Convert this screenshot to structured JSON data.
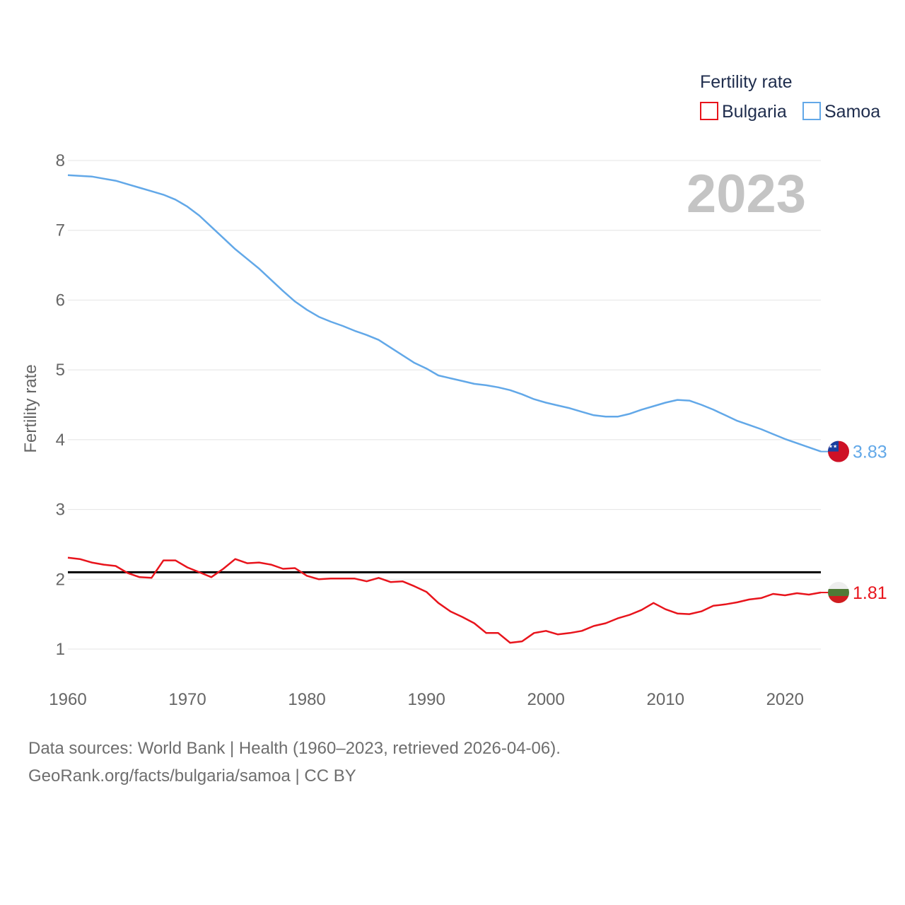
{
  "legend": {
    "title": "Fertility rate",
    "items": [
      {
        "name": "Bulgaria",
        "color": "#e8141c"
      },
      {
        "name": "Samoa",
        "color": "#62a8e8"
      }
    ]
  },
  "year_label": "2023",
  "end_labels": {
    "samoa": "3.83",
    "bulgaria": "1.81"
  },
  "footer": {
    "line1": "Data sources: World Bank | Health (1960–2023, retrieved 2026-04-06).",
    "line2": "GeoRank.org/facts/bulgaria/samoa | CC BY"
  },
  "chart_data": {
    "type": "line",
    "title": "Fertility rate",
    "xlabel": "",
    "ylabel": "Fertility rate",
    "xlim": [
      1960,
      2023
    ],
    "ylim": [
      0.5,
      8.3
    ],
    "x_ticks": [
      "1960",
      "1970",
      "1980",
      "1990",
      "2000",
      "2010",
      "2020"
    ],
    "y_ticks": [
      "1",
      "2",
      "3",
      "4",
      "5",
      "6",
      "7",
      "8"
    ],
    "reference_line": 2.1,
    "x": [
      1960,
      1961,
      1962,
      1963,
      1964,
      1965,
      1966,
      1967,
      1968,
      1969,
      1970,
      1971,
      1972,
      1973,
      1974,
      1975,
      1976,
      1977,
      1978,
      1979,
      1980,
      1981,
      1982,
      1983,
      1984,
      1985,
      1986,
      1987,
      1988,
      1989,
      1990,
      1991,
      1992,
      1993,
      1994,
      1995,
      1996,
      1997,
      1998,
      1999,
      2000,
      2001,
      2002,
      2003,
      2004,
      2005,
      2006,
      2007,
      2008,
      2009,
      2010,
      2011,
      2012,
      2013,
      2014,
      2015,
      2016,
      2017,
      2018,
      2019,
      2020,
      2021,
      2022,
      2023
    ],
    "series": [
      {
        "name": "Bulgaria",
        "color": "#e8141c",
        "values": [
          2.31,
          2.29,
          2.24,
          2.21,
          2.19,
          2.09,
          2.03,
          2.02,
          2.27,
          2.27,
          2.17,
          2.1,
          2.03,
          2.15,
          2.29,
          2.23,
          2.24,
          2.21,
          2.15,
          2.16,
          2.05,
          2.0,
          2.01,
          2.01,
          2.01,
          1.97,
          2.02,
          1.96,
          1.97,
          1.9,
          1.82,
          1.66,
          1.54,
          1.46,
          1.37,
          1.23,
          1.23,
          1.09,
          1.11,
          1.23,
          1.26,
          1.21,
          1.23,
          1.26,
          1.33,
          1.37,
          1.44,
          1.49,
          1.56,
          1.66,
          1.57,
          1.51,
          1.5,
          1.54,
          1.62,
          1.64,
          1.67,
          1.71,
          1.73,
          1.79,
          1.77,
          1.8,
          1.78,
          1.81
        ]
      },
      {
        "name": "Samoa",
        "color": "#62a8e8",
        "values": [
          7.79,
          7.78,
          7.77,
          7.74,
          7.71,
          7.66,
          7.61,
          7.56,
          7.51,
          7.44,
          7.34,
          7.21,
          7.05,
          6.89,
          6.73,
          6.59,
          6.45,
          6.29,
          6.13,
          5.98,
          5.86,
          5.76,
          5.69,
          5.63,
          5.56,
          5.5,
          5.43,
          5.32,
          5.21,
          5.1,
          5.02,
          4.92,
          4.88,
          4.84,
          4.8,
          4.78,
          4.75,
          4.71,
          4.65,
          4.58,
          4.53,
          4.49,
          4.45,
          4.4,
          4.35,
          4.33,
          4.33,
          4.37,
          4.43,
          4.48,
          4.53,
          4.57,
          4.56,
          4.5,
          4.43,
          4.35,
          4.27,
          4.21,
          4.15,
          4.08,
          4.01,
          3.95,
          3.89,
          3.83
        ]
      }
    ]
  }
}
